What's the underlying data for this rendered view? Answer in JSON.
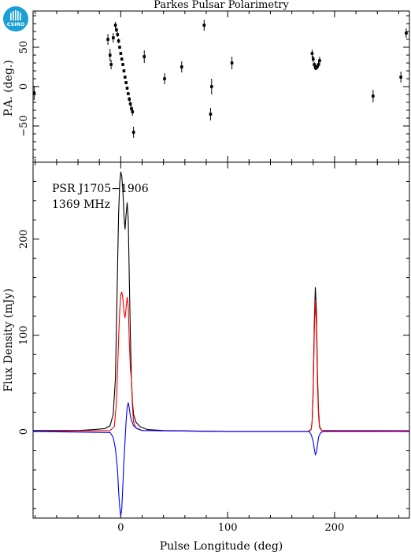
{
  "logo": {
    "text": "CSIRO",
    "color": "#1a9fd6"
  },
  "chart_data": [
    {
      "type": "scatter",
      "title": "Parkes Pulsar Polarimetry",
      "xlabel": "",
      "ylabel": "P.A. (deg.)",
      "xlim": [
        -82,
        270
      ],
      "ylim": [
        -96,
        96
      ],
      "x_ticks": [
        0,
        100,
        200
      ],
      "y_ticks": [
        -50,
        0,
        50
      ],
      "y_tick_labels": [
        "−50",
        "0",
        "50"
      ],
      "grid": false,
      "series": [
        {
          "color": "#000000",
          "points": [
            {
              "x": -81,
              "y": -8,
              "err": 9
            },
            {
              "x": -12,
              "y": 60,
              "err": 7
            },
            {
              "x": -10,
              "y": 40,
              "err": 8
            },
            {
              "x": -9,
              "y": 28,
              "err": 6
            },
            {
              "x": -7,
              "y": 62,
              "err": 6
            },
            {
              "x": -5,
              "y": 78,
              "err": 4
            },
            {
              "x": -4,
              "y": 72,
              "err": 3
            },
            {
              "x": -3,
              "y": 66,
              "err": 3
            },
            {
              "x": -2,
              "y": 58,
              "err": 3
            },
            {
              "x": -1,
              "y": 50,
              "err": 2
            },
            {
              "x": 0,
              "y": 42,
              "err": 2
            },
            {
              "x": 1,
              "y": 35,
              "err": 2
            },
            {
              "x": 2,
              "y": 28,
              "err": 2
            },
            {
              "x": 3,
              "y": 20,
              "err": 2
            },
            {
              "x": 4,
              "y": 12,
              "err": 2
            },
            {
              "x": 5,
              "y": 5,
              "err": 2
            },
            {
              "x": 6,
              "y": -2,
              "err": 2
            },
            {
              "x": 7,
              "y": -9,
              "err": 2
            },
            {
              "x": 8,
              "y": -16,
              "err": 3
            },
            {
              "x": 9,
              "y": -22,
              "err": 3
            },
            {
              "x": 10,
              "y": -28,
              "err": 4
            },
            {
              "x": 11,
              "y": -32,
              "err": 5
            },
            {
              "x": 12,
              "y": -58,
              "err": 7
            },
            {
              "x": 22,
              "y": 38,
              "err": 8
            },
            {
              "x": 41,
              "y": 10,
              "err": 7
            },
            {
              "x": 57,
              "y": 25,
              "err": 7
            },
            {
              "x": 78,
              "y": 78,
              "err": 7
            },
            {
              "x": 84,
              "y": -35,
              "err": 8
            },
            {
              "x": 85,
              "y": 0,
              "err": 10
            },
            {
              "x": 104,
              "y": 30,
              "err": 8
            },
            {
              "x": 179,
              "y": 42,
              "err": 5
            },
            {
              "x": 180,
              "y": 35,
              "err": 4
            },
            {
              "x": 181,
              "y": 28,
              "err": 3
            },
            {
              "x": 182,
              "y": 24,
              "err": 3
            },
            {
              "x": 183,
              "y": 24,
              "err": 3
            },
            {
              "x": 184,
              "y": 26,
              "err": 3
            },
            {
              "x": 185,
              "y": 28,
              "err": 4
            },
            {
              "x": 186,
              "y": 33,
              "err": 5
            },
            {
              "x": 236,
              "y": -12,
              "err": 8
            },
            {
              "x": 262,
              "y": 12,
              "err": 7
            },
            {
              "x": 267,
              "y": 68,
              "err": 6
            }
          ]
        }
      ]
    },
    {
      "type": "line",
      "title": "",
      "xlabel": "Pulse Longitude (deg)",
      "ylabel": "Flux Density (mJy)",
      "annotations": [
        "PSR J1705−1906",
        "1369 MHz"
      ],
      "xlim": [
        -82,
        270
      ],
      "ylim": [
        -90,
        280
      ],
      "x_ticks": [
        0,
        100,
        200
      ],
      "y_ticks": [
        0,
        100,
        200
      ],
      "grid": false,
      "series": [
        {
          "color": "#000000",
          "points": [
            [
              -82,
              1
            ],
            [
              -40,
              1
            ],
            [
              -25,
              2
            ],
            [
              -15,
              3
            ],
            [
              -10,
              6
            ],
            [
              -7,
              18
            ],
            [
              -5,
              55
            ],
            [
              -4,
              110
            ],
            [
              -3,
              170
            ],
            [
              -2,
              225
            ],
            [
              -1,
              258
            ],
            [
              0,
              270
            ],
            [
              1,
              265
            ],
            [
              2,
              250
            ],
            [
              3,
              225
            ],
            [
              4,
              210
            ],
            [
              5,
              225
            ],
            [
              6,
              238
            ],
            [
              7,
              220
            ],
            [
              8,
              160
            ],
            [
              9,
              100
            ],
            [
              10,
              55
            ],
            [
              11,
              30
            ],
            [
              12,
              18
            ],
            [
              14,
              10
            ],
            [
              18,
              5
            ],
            [
              25,
              2
            ],
            [
              40,
              1
            ],
            [
              100,
              0
            ],
            [
              175,
              0
            ],
            [
              178,
              2
            ],
            [
              179,
              10
            ],
            [
              180,
              45
            ],
            [
              181,
              110
            ],
            [
              182,
              150
            ],
            [
              183,
              125
            ],
            [
              184,
              60
            ],
            [
              185,
              20
            ],
            [
              186,
              5
            ],
            [
              188,
              1
            ],
            [
              270,
              0
            ]
          ]
        },
        {
          "color": "#ff0000",
          "points": [
            [
              -82,
              0
            ],
            [
              -10,
              1
            ],
            [
              -6,
              5
            ],
            [
              -4,
              30
            ],
            [
              -2,
              95
            ],
            [
              -1,
              125
            ],
            [
              0,
              142
            ],
            [
              1,
              145
            ],
            [
              2,
              138
            ],
            [
              3,
              125
            ],
            [
              4,
              118
            ],
            [
              5,
              128
            ],
            [
              6,
              140
            ],
            [
              7,
              130
            ],
            [
              8,
              95
            ],
            [
              9,
              65
            ],
            [
              10,
              55
            ],
            [
              11,
              25
            ],
            [
              12,
              10
            ],
            [
              14,
              4
            ],
            [
              20,
              1
            ],
            [
              100,
              0
            ],
            [
              176,
              0
            ],
            [
              178,
              2
            ],
            [
              179,
              10
            ],
            [
              180,
              40
            ],
            [
              181,
              100
            ],
            [
              182,
              137
            ],
            [
              183,
              110
            ],
            [
              184,
              50
            ],
            [
              185,
              15
            ],
            [
              186,
              4
            ],
            [
              188,
              1
            ],
            [
              270,
              1
            ]
          ]
        },
        {
          "color": "#0000ff",
          "points": [
            [
              -82,
              0
            ],
            [
              -10,
              -1
            ],
            [
              -7,
              -6
            ],
            [
              -5,
              -18
            ],
            [
              -3,
              -40
            ],
            [
              -2,
              -62
            ],
            [
              -1,
              -78
            ],
            [
              0,
              -88
            ],
            [
              1,
              -80
            ],
            [
              2,
              -55
            ],
            [
              3,
              -30
            ],
            [
              4,
              -10
            ],
            [
              5,
              10
            ],
            [
              6,
              25
            ],
            [
              7,
              30
            ],
            [
              8,
              24
            ],
            [
              9,
              16
            ],
            [
              10,
              12
            ],
            [
              12,
              6
            ],
            [
              15,
              3
            ],
            [
              20,
              1
            ],
            [
              100,
              0
            ],
            [
              176,
              0
            ],
            [
              178,
              -3
            ],
            [
              180,
              -10
            ],
            [
              181,
              -18
            ],
            [
              182,
              -24
            ],
            [
              183,
              -22
            ],
            [
              184,
              -14
            ],
            [
              185,
              -6
            ],
            [
              187,
              -1
            ],
            [
              190,
              0
            ],
            [
              270,
              0
            ]
          ]
        }
      ]
    }
  ]
}
